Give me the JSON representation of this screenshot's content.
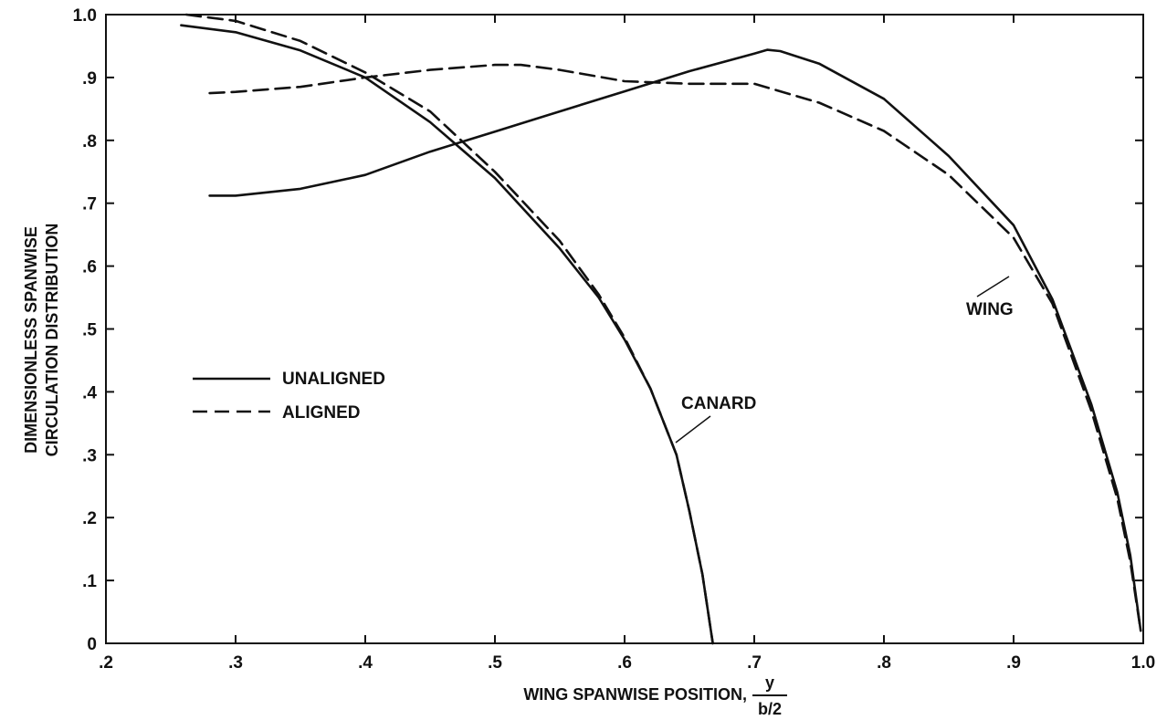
{
  "chart_data": {
    "type": "line",
    "xlabel": "WING SPANWISE POSITION,",
    "xlabel_fraction": {
      "numerator": "y",
      "denominator": "b/2"
    },
    "ylabel_lines": [
      "DIMENSIONLESS SPANWISE",
      "CIRCULATION DISTRIBUTION"
    ],
    "xlim": [
      0.2,
      1.0
    ],
    "ylim": [
      0,
      1.0
    ],
    "x_tick_labels": [
      ".2",
      ".3",
      ".4",
      ".5",
      ".6",
      ".7",
      ".8",
      ".9",
      "1.0"
    ],
    "y_tick_labels": [
      "0",
      ".1",
      ".2",
      ".3",
      ".4",
      ".5",
      ".6",
      ".7",
      ".8",
      ".9",
      "1.0"
    ],
    "grid": false,
    "legend": {
      "placement": "left-center",
      "entries": [
        {
          "label": "UNALIGNED",
          "style": "solid"
        },
        {
          "label": "ALIGNED",
          "style": "dashed"
        }
      ]
    },
    "annotations": [
      {
        "text": "CANARD",
        "points_to": [
          0.64,
          0.32
        ]
      },
      {
        "text": "WING",
        "points_to": [
          0.915,
          0.6
        ]
      }
    ],
    "series": [
      {
        "style": "solid",
        "x": [
          0.258,
          0.3,
          0.35,
          0.4,
          0.45,
          0.5,
          0.55,
          0.58,
          0.6,
          0.62,
          0.64,
          0.65,
          0.66,
          0.668
        ],
        "y": [
          0.983,
          0.972,
          0.943,
          0.9,
          0.829,
          0.74,
          0.628,
          0.55,
          0.483,
          0.405,
          0.3,
          0.21,
          0.11,
          0
        ]
      },
      {
        "style": "dashed",
        "x": [
          0.262,
          0.3,
          0.35,
          0.4,
          0.45,
          0.5,
          0.55,
          0.58,
          0.6,
          0.62,
          0.64,
          0.65,
          0.66,
          0.668
        ],
        "y": [
          1.0,
          0.99,
          0.958,
          0.908,
          0.846,
          0.75,
          0.64,
          0.555,
          0.486,
          0.405,
          0.3,
          0.21,
          0.11,
          0
        ]
      },
      {
        "style": "solid",
        "x": [
          0.28,
          0.3,
          0.35,
          0.4,
          0.45,
          0.5,
          0.55,
          0.6,
          0.65,
          0.7,
          0.71,
          0.72,
          0.75,
          0.8,
          0.85,
          0.9,
          0.93,
          0.96,
          0.98,
          0.99,
          0.998
        ],
        "y": [
          0.712,
          0.712,
          0.723,
          0.745,
          0.782,
          0.814,
          0.846,
          0.878,
          0.91,
          0.938,
          0.944,
          0.942,
          0.922,
          0.866,
          0.775,
          0.665,
          0.547,
          0.38,
          0.24,
          0.14,
          0.02
        ]
      },
      {
        "style": "dashed",
        "x": [
          0.28,
          0.3,
          0.35,
          0.4,
          0.45,
          0.5,
          0.52,
          0.55,
          0.6,
          0.65,
          0.7,
          0.75,
          0.8,
          0.85,
          0.9,
          0.93,
          0.96,
          0.98,
          0.99,
          0.998
        ],
        "y": [
          0.875,
          0.877,
          0.885,
          0.9,
          0.912,
          0.92,
          0.92,
          0.912,
          0.894,
          0.89,
          0.89,
          0.86,
          0.815,
          0.745,
          0.645,
          0.54,
          0.37,
          0.23,
          0.13,
          0.02
        ]
      }
    ]
  }
}
